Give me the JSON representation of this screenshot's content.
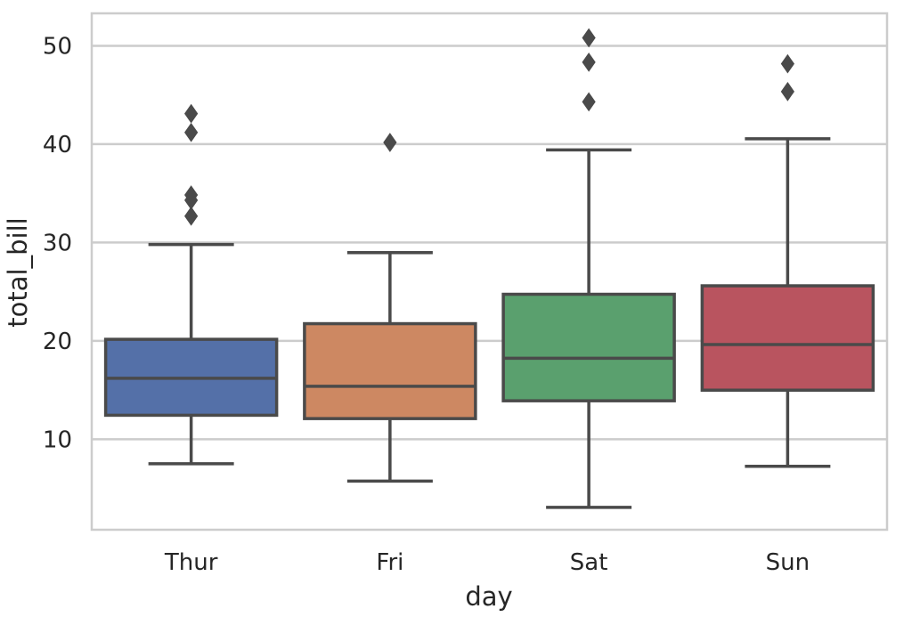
{
  "chart_data": {
    "type": "boxplot",
    "title": "",
    "xlabel": "day",
    "ylabel": "total_bill",
    "ylim": [
      0.8,
      53.3
    ],
    "yticks": [
      10,
      20,
      30,
      40,
      50
    ],
    "grid": true,
    "line_color": "#4a4a4a",
    "grid_color": "#cccccc",
    "categories": [
      "Thur",
      "Fri",
      "Sat",
      "Sun"
    ],
    "boxes": [
      {
        "label": "Thur",
        "color": "#5470a8",
        "whisker_low": 7.51,
        "q1": 12.44,
        "median": 16.2,
        "q3": 20.16,
        "whisker_high": 29.8,
        "outliers": [
          32.68,
          34.3,
          34.83,
          41.19,
          43.11
        ]
      },
      {
        "label": "Fri",
        "color": "#cd8862",
        "whisker_low": 5.75,
        "q1": 12.1,
        "median": 15.38,
        "q3": 21.75,
        "whisker_high": 28.97,
        "outliers": [
          40.17
        ]
      },
      {
        "label": "Sat",
        "color": "#5aa06e",
        "whisker_low": 3.07,
        "q1": 13.91,
        "median": 18.24,
        "q3": 24.74,
        "whisker_high": 39.42,
        "outliers": [
          44.3,
          48.33,
          50.81
        ]
      },
      {
        "label": "Sun",
        "color": "#b9545f",
        "whisker_low": 7.25,
        "q1": 14.99,
        "median": 19.63,
        "q3": 25.6,
        "whisker_high": 40.55,
        "outliers": [
          45.35,
          48.17
        ]
      }
    ]
  }
}
